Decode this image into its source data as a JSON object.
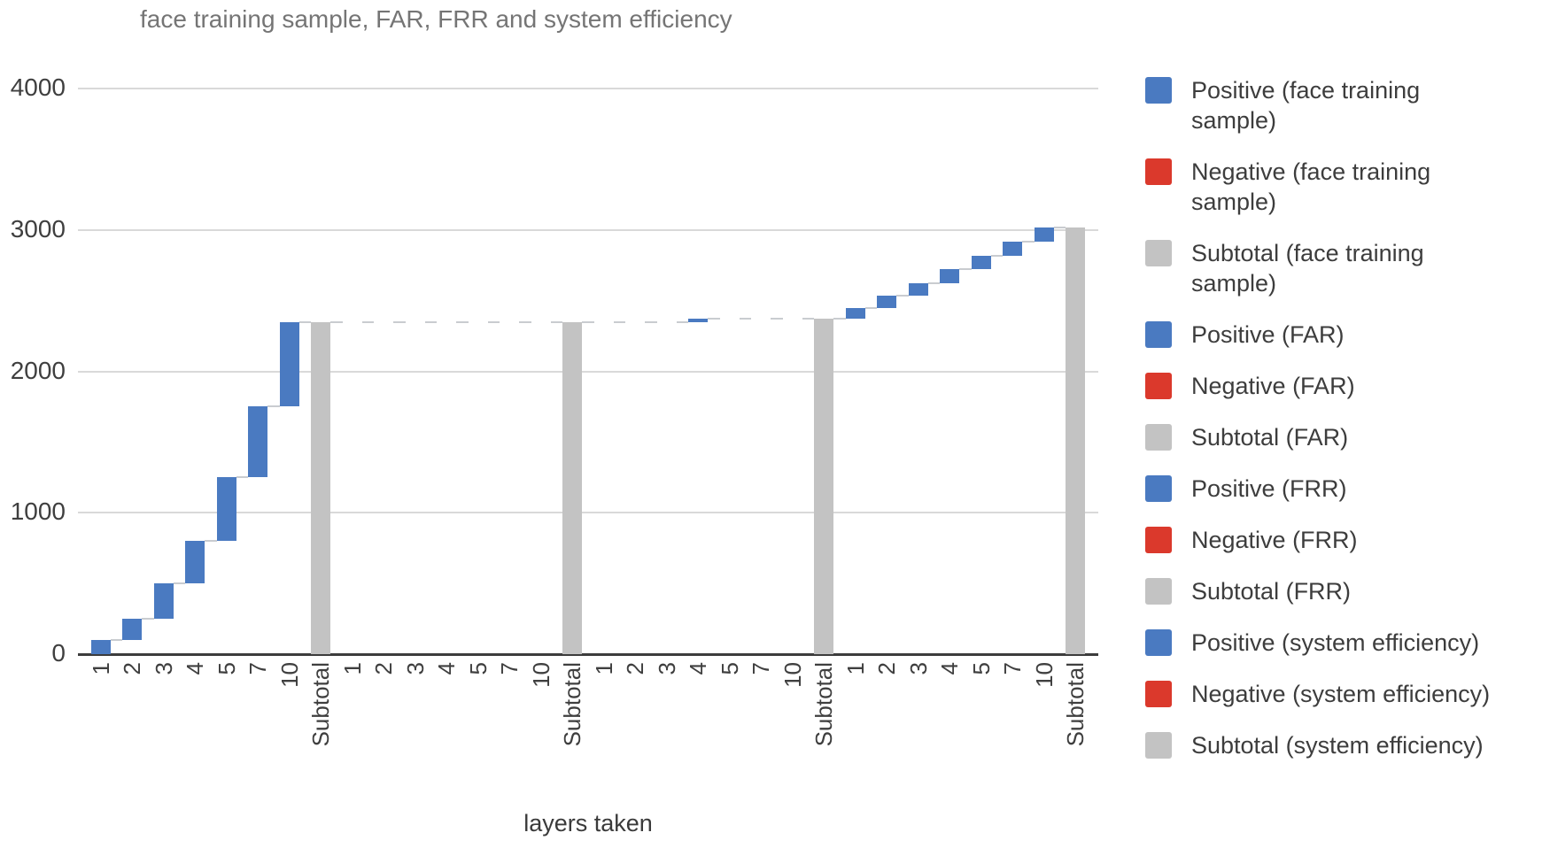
{
  "title": "face training sample, FAR, FRR and system efficiency",
  "x_axis_title": "layers taken",
  "colors": {
    "positive": "#4a7ac1",
    "negative": "#db392c",
    "subtotal": "#c3c3c3",
    "grid": "#d9d9d9",
    "axis": "#3c3c3c",
    "connector": "#c9ccd0",
    "title_text": "#757575",
    "tick_text": "#3f3f3f"
  },
  "legend": [
    {
      "label": "Positive (face training\nsample)",
      "color_key": "positive"
    },
    {
      "label": "Negative (face training\nsample)",
      "color_key": "negative"
    },
    {
      "label": "Subtotal (face training\nsample)",
      "color_key": "subtotal"
    },
    {
      "label": "Positive (FAR)",
      "color_key": "positive"
    },
    {
      "label": "Negative (FAR)",
      "color_key": "negative"
    },
    {
      "label": "Subtotal (FAR)",
      "color_key": "subtotal"
    },
    {
      "label": "Positive (FRR)",
      "color_key": "positive"
    },
    {
      "label": "Negative (FRR)",
      "color_key": "negative"
    },
    {
      "label": "Subtotal (FRR)",
      "color_key": "subtotal"
    },
    {
      "label": "Positive (system efficiency)",
      "color_key": "positive"
    },
    {
      "label": "Negative (system efficiency)",
      "color_key": "negative"
    },
    {
      "label": "Subtotal (system efficiency)",
      "color_key": "subtotal"
    }
  ],
  "chart_data": {
    "type": "waterfall",
    "title": "face training sample, FAR, FRR and system efficiency",
    "xlabel": "layers taken",
    "ylabel": "",
    "ylim": [
      0,
      4000
    ],
    "yticks": [
      0,
      1000,
      2000,
      3000,
      4000
    ],
    "grid": true,
    "legend_position": "right",
    "categories": [
      "1",
      "2",
      "3",
      "4",
      "5",
      "7",
      "10",
      "Subtotal"
    ],
    "groups": [
      {
        "name": "face training sample",
        "increments": [
          100,
          150,
          250,
          300,
          450,
          500,
          600
        ],
        "subtotal": 2350
      },
      {
        "name": "FAR",
        "increments": [
          0,
          0,
          0,
          0,
          0,
          0,
          0
        ],
        "subtotal": 2350
      },
      {
        "name": "FRR",
        "increments": [
          0,
          0,
          0,
          20,
          0,
          0,
          0
        ],
        "subtotal": 2370
      },
      {
        "name": "system efficiency",
        "increments": [
          75,
          90,
          90,
          95,
          100,
          95,
          105
        ],
        "subtotal": 3020
      }
    ]
  }
}
